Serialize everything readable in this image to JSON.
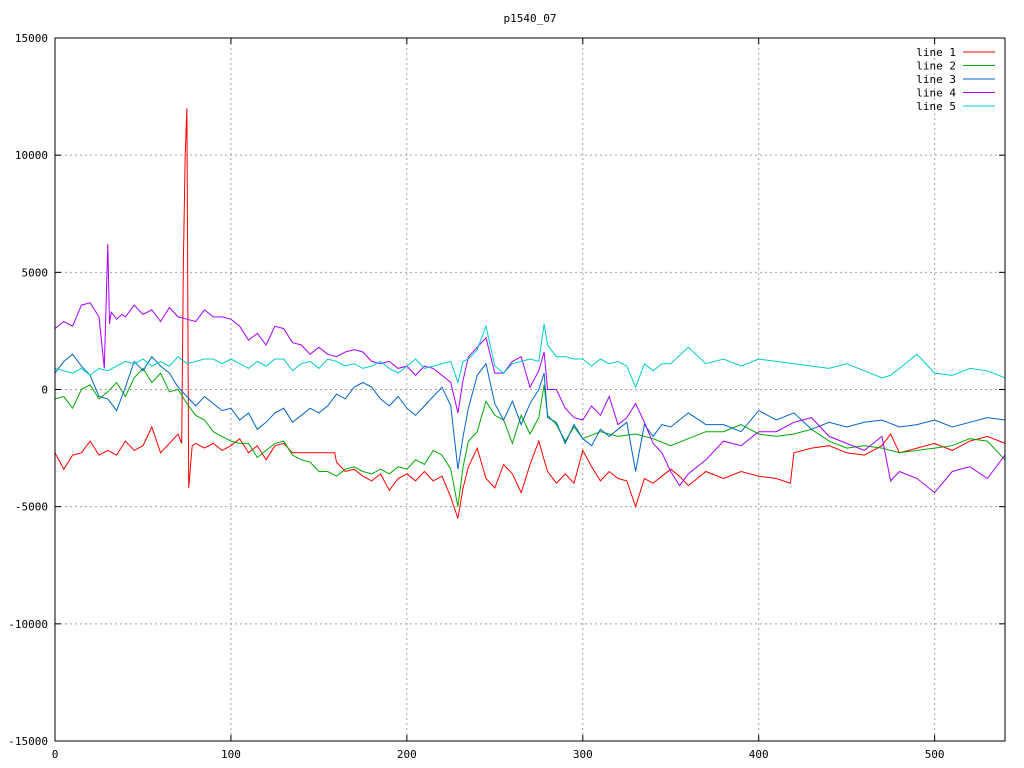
{
  "chart_data": {
    "type": "line",
    "title": "p1540_07",
    "xlabel": "",
    "ylabel": "",
    "xlim": [
      0,
      540
    ],
    "ylim": [
      -15000,
      15000
    ],
    "x_ticks": [
      0,
      100,
      200,
      300,
      400,
      500
    ],
    "y_ticks": [
      -15000,
      -10000,
      -5000,
      0,
      5000,
      10000,
      15000
    ],
    "grid": true,
    "legend_position": "top-right",
    "series": [
      {
        "name": "line 1",
        "color": "#ff0000",
        "x": [
          0,
          5,
          10,
          15,
          20,
          25,
          30,
          35,
          40,
          45,
          50,
          55,
          60,
          65,
          70,
          72,
          73,
          74,
          75,
          76,
          78,
          80,
          85,
          90,
          95,
          100,
          105,
          110,
          115,
          120,
          125,
          130,
          135,
          140,
          150,
          159,
          160,
          165,
          170,
          175,
          180,
          185,
          190,
          195,
          200,
          205,
          210,
          215,
          220,
          225,
          229,
          232,
          235,
          240,
          245,
          250,
          255,
          260,
          265,
          270,
          275,
          278,
          280,
          285,
          290,
          295,
          300,
          305,
          310,
          315,
          320,
          325,
          330,
          335,
          340,
          345,
          350,
          355,
          360,
          370,
          380,
          390,
          400,
          410,
          418,
          420,
          430,
          440,
          450,
          460,
          470,
          475,
          480,
          490,
          500,
          510,
          520,
          530,
          540
        ],
        "y": [
          -2700,
          -3400,
          -2800,
          -2700,
          -2200,
          -2800,
          -2600,
          -2800,
          -2200,
          -2600,
          -2400,
          -1600,
          -2700,
          -2300,
          -1900,
          -2300,
          5500,
          10000,
          12000,
          -4200,
          -2400,
          -2300,
          -2500,
          -2300,
          -2600,
          -2400,
          -2100,
          -2700,
          -2400,
          -3000,
          -2400,
          -2300,
          -2700,
          -2700,
          -2700,
          -2700,
          -3100,
          -3500,
          -3400,
          -3700,
          -3900,
          -3600,
          -4300,
          -3800,
          -3600,
          -3900,
          -3500,
          -3900,
          -3700,
          -4600,
          -5500,
          -4200,
          -3300,
          -2500,
          -3800,
          -4200,
          -3200,
          -3600,
          -4400,
          -3200,
          -2200,
          -3000,
          -3500,
          -4000,
          -3600,
          -4000,
          -2600,
          -3300,
          -3900,
          -3500,
          -3800,
          -3900,
          -5000,
          -3800,
          -4000,
          -3700,
          -3400,
          -3700,
          -4100,
          -3500,
          -3800,
          -3500,
          -3700,
          -3800,
          -4000,
          -2700,
          -2500,
          -2400,
          -2700,
          -2800,
          -2400,
          -1900,
          -2700,
          -2500,
          -2300,
          -2600,
          -2200,
          -2000,
          -2300
        ]
      },
      {
        "name": "line 2",
        "color": "#00aa00",
        "x": [
          0,
          5,
          10,
          15,
          20,
          25,
          30,
          35,
          40,
          45,
          50,
          55,
          60,
          65,
          70,
          75,
          80,
          85,
          90,
          95,
          100,
          105,
          110,
          115,
          120,
          125,
          130,
          135,
          140,
          145,
          150,
          155,
          160,
          165,
          170,
          175,
          180,
          185,
          190,
          195,
          200,
          205,
          210,
          215,
          220,
          225,
          229,
          232,
          235,
          240,
          245,
          250,
          255,
          260,
          265,
          270,
          275,
          278,
          280,
          285,
          290,
          295,
          300,
          310,
          320,
          330,
          340,
          350,
          360,
          370,
          380,
          390,
          400,
          410,
          420,
          430,
          440,
          450,
          460,
          470,
          480,
          490,
          500,
          510,
          520,
          530,
          540
        ],
        "y": [
          -400,
          -300,
          -800,
          0,
          200,
          -400,
          -100,
          300,
          -300,
          500,
          900,
          300,
          700,
          -100,
          0,
          -600,
          -1100,
          -1300,
          -1800,
          -2000,
          -2200,
          -2300,
          -2300,
          -2900,
          -2600,
          -2300,
          -2200,
          -2800,
          -3000,
          -3100,
          -3500,
          -3500,
          -3700,
          -3400,
          -3300,
          -3500,
          -3600,
          -3400,
          -3600,
          -3300,
          -3400,
          -3000,
          -3200,
          -2600,
          -2800,
          -3400,
          -5000,
          -3300,
          -2200,
          -1800,
          -500,
          -1100,
          -1300,
          -2300,
          -1100,
          -1900,
          -1200,
          200,
          -1100,
          -1500,
          -2200,
          -1600,
          -2100,
          -1800,
          -2000,
          -1900,
          -2100,
          -2400,
          -2100,
          -1800,
          -1800,
          -1500,
          -1900,
          -2000,
          -1900,
          -1700,
          -2200,
          -2500,
          -2400,
          -2500,
          -2700,
          -2600,
          -2500,
          -2400,
          -2100,
          -2200,
          -3000
        ]
      },
      {
        "name": "line 3",
        "color": "#0066cc",
        "x": [
          0,
          5,
          10,
          15,
          20,
          25,
          30,
          35,
          40,
          45,
          50,
          55,
          60,
          65,
          70,
          75,
          80,
          85,
          90,
          95,
          100,
          105,
          110,
          115,
          120,
          125,
          130,
          135,
          140,
          145,
          150,
          155,
          160,
          165,
          170,
          175,
          180,
          185,
          190,
          195,
          200,
          205,
          210,
          215,
          220,
          225,
          229,
          232,
          235,
          240,
          245,
          250,
          255,
          260,
          265,
          270,
          275,
          278,
          280,
          285,
          290,
          295,
          300,
          305,
          310,
          315,
          320,
          325,
          330,
          335,
          340,
          345,
          350,
          360,
          370,
          380,
          390,
          400,
          410,
          420,
          430,
          440,
          450,
          460,
          470,
          480,
          490,
          500,
          510,
          520,
          530,
          540
        ],
        "y": [
          700,
          1200,
          1500,
          1000,
          600,
          -300,
          -400,
          -900,
          100,
          1200,
          800,
          1400,
          1000,
          700,
          100,
          -300,
          -700,
          -300,
          -600,
          -900,
          -800,
          -1300,
          -1000,
          -1700,
          -1400,
          -1000,
          -800,
          -1400,
          -1100,
          -800,
          -1000,
          -700,
          -200,
          -400,
          100,
          300,
          100,
          -400,
          -700,
          -300,
          -800,
          -1100,
          -700,
          -300,
          100,
          -700,
          -3400,
          -2000,
          -800,
          600,
          1100,
          -600,
          -1300,
          -500,
          -1500,
          -600,
          0,
          700,
          -1200,
          -1400,
          -2300,
          -1500,
          -2100,
          -2400,
          -1700,
          -2000,
          -1700,
          -1400,
          -3500,
          -1500,
          -2000,
          -1500,
          -1600,
          -1000,
          -1500,
          -1500,
          -1800,
          -900,
          -1300,
          -1000,
          -1700,
          -1400,
          -1600,
          -1400,
          -1300,
          -1600,
          -1500,
          -1300,
          -1600,
          -1400,
          -1200,
          -1300
        ]
      },
      {
        "name": "line 4",
        "color": "#aa00ff",
        "x": [
          0,
          5,
          10,
          15,
          20,
          25,
          28,
          30,
          31,
          32,
          35,
          38,
          40,
          45,
          50,
          55,
          60,
          65,
          70,
          75,
          80,
          85,
          90,
          95,
          100,
          105,
          110,
          115,
          120,
          125,
          130,
          135,
          140,
          145,
          150,
          155,
          160,
          165,
          170,
          175,
          180,
          185,
          190,
          195,
          200,
          205,
          210,
          215,
          220,
          225,
          229,
          232,
          235,
          240,
          245,
          250,
          255,
          260,
          265,
          270,
          275,
          278,
          280,
          285,
          290,
          295,
          300,
          305,
          310,
          315,
          320,
          325,
          330,
          335,
          340,
          345,
          350,
          355,
          360,
          370,
          380,
          390,
          400,
          410,
          420,
          430,
          440,
          450,
          460,
          470,
          475,
          480,
          490,
          500,
          510,
          520,
          530,
          540
        ],
        "y": [
          2600,
          2900,
          2700,
          3600,
          3700,
          3100,
          900,
          6200,
          2800,
          3300,
          3000,
          3200,
          3100,
          3600,
          3200,
          3400,
          2900,
          3500,
          3100,
          3000,
          2900,
          3400,
          3100,
          3100,
          3000,
          2700,
          2100,
          2400,
          1900,
          2700,
          2600,
          2000,
          1900,
          1500,
          1800,
          1500,
          1400,
          1600,
          1700,
          1600,
          1200,
          1100,
          1200,
          900,
          1000,
          600,
          1000,
          900,
          600,
          300,
          -1000,
          400,
          1400,
          1800,
          2200,
          700,
          700,
          1200,
          1400,
          100,
          800,
          1600,
          0,
          0,
          -800,
          -1200,
          -1300,
          -700,
          -1100,
          -300,
          -1500,
          -1200,
          -600,
          -1400,
          -2300,
          -2700,
          -3500,
          -4100,
          -3600,
          -3000,
          -2200,
          -2400,
          -1800,
          -1800,
          -1400,
          -1200,
          -2000,
          -2300,
          -2600,
          -2000,
          -3900,
          -3500,
          -3800,
          -4400,
          -3500,
          -3300,
          -3800,
          -2800
        ]
      },
      {
        "name": "line 5",
        "color": "#00cccc",
        "x": [
          0,
          5,
          10,
          15,
          20,
          25,
          30,
          35,
          40,
          45,
          50,
          55,
          60,
          65,
          70,
          75,
          80,
          85,
          90,
          95,
          100,
          105,
          110,
          115,
          120,
          125,
          130,
          135,
          140,
          145,
          150,
          155,
          160,
          165,
          170,
          175,
          180,
          185,
          190,
          195,
          200,
          205,
          210,
          215,
          220,
          225,
          229,
          232,
          235,
          240,
          245,
          250,
          255,
          260,
          265,
          270,
          275,
          278,
          280,
          285,
          290,
          295,
          300,
          305,
          310,
          315,
          320,
          325,
          330,
          335,
          340,
          345,
          350,
          360,
          370,
          380,
          390,
          400,
          410,
          420,
          430,
          440,
          450,
          460,
          470,
          475,
          480,
          490,
          500,
          510,
          520,
          530,
          540
        ],
        "y": [
          900,
          800,
          700,
          900,
          600,
          900,
          800,
          1000,
          1200,
          1100,
          1300,
          1000,
          1200,
          1000,
          1400,
          1100,
          1200,
          1300,
          1300,
          1100,
          1300,
          1100,
          900,
          1200,
          1000,
          1300,
          1300,
          800,
          1100,
          1200,
          900,
          1300,
          1200,
          1000,
          1100,
          900,
          1000,
          1200,
          900,
          700,
          1000,
          1300,
          900,
          1000,
          1100,
          1200,
          300,
          1200,
          1300,
          1700,
          2700,
          1000,
          700,
          1100,
          1200,
          1300,
          1200,
          2800,
          1900,
          1400,
          1400,
          1300,
          1300,
          1000,
          1300,
          1100,
          1200,
          1000,
          100,
          1100,
          800,
          1100,
          1100,
          1800,
          1100,
          1300,
          1000,
          1300,
          1200,
          1100,
          1000,
          900,
          1100,
          800,
          500,
          600,
          900,
          1500,
          700,
          600,
          900,
          800,
          500
        ]
      }
    ]
  }
}
